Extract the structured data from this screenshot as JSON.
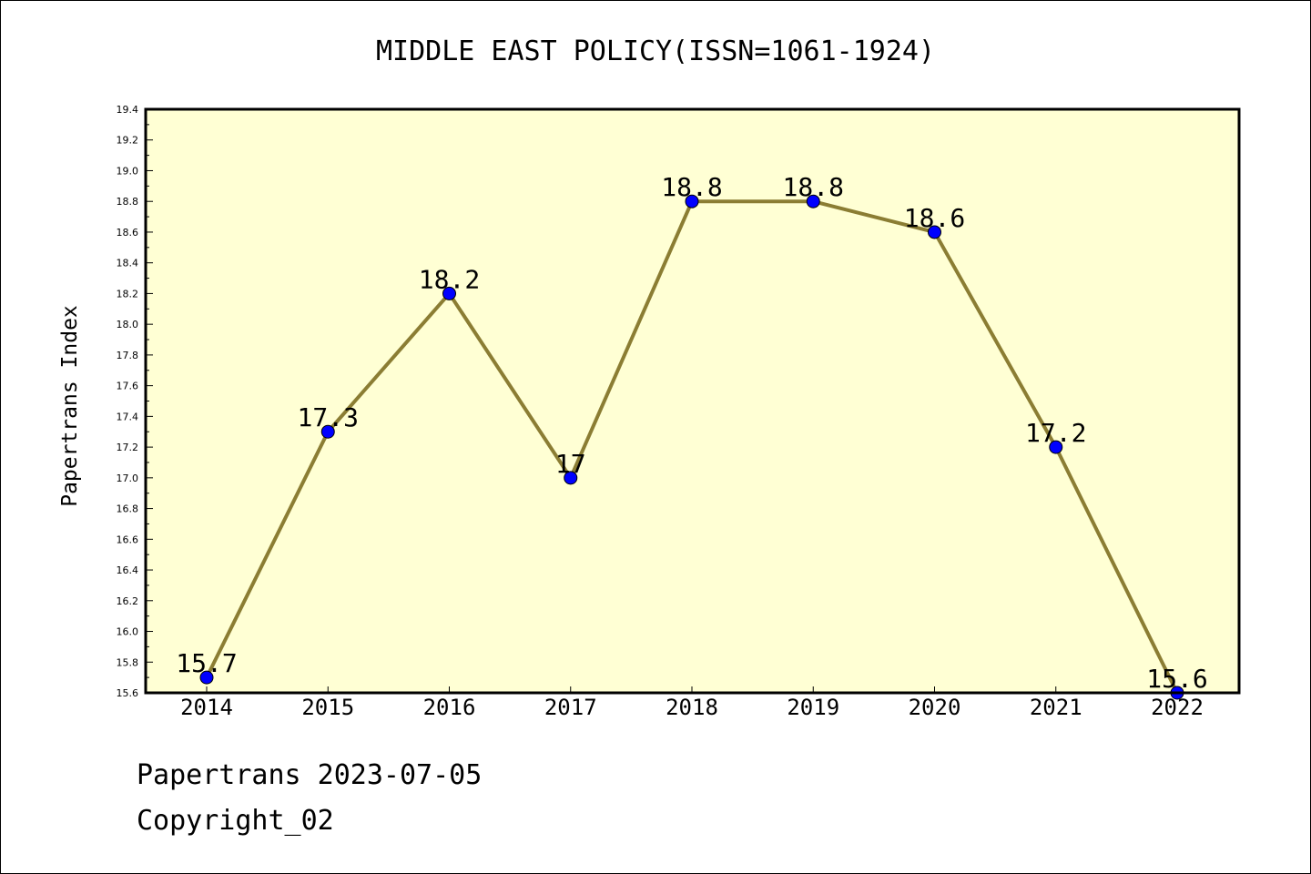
{
  "chart_data": {
    "type": "line",
    "title": "MIDDLE EAST POLICY(ISSN=1061-1924)",
    "xlabel": "",
    "ylabel": "Papertrans Index",
    "categories": [
      "2014",
      "2015",
      "2016",
      "2017",
      "2018",
      "2019",
      "2020",
      "2021",
      "2022"
    ],
    "values": [
      15.7,
      17.3,
      18.2,
      17.0,
      18.8,
      18.8,
      18.6,
      17.2,
      15.6
    ],
    "data_labels": [
      "15.7",
      "17.3",
      "18.2",
      "17",
      "18.8",
      "18.8",
      "18.6",
      "17.2",
      "15.6"
    ],
    "ylim": [
      15.6,
      19.4
    ],
    "yticks": [
      "15.6",
      "15.8",
      "16.0",
      "16.2",
      "16.4",
      "16.6",
      "16.8",
      "17.0",
      "17.2",
      "17.4",
      "17.6",
      "17.8",
      "18.0",
      "18.2",
      "18.4",
      "18.6",
      "18.8",
      "19.0",
      "19.2",
      "19.4"
    ],
    "grid": false,
    "colors": {
      "background": "#ffffd4",
      "line": "#8b7d33",
      "marker": "#0000ff"
    }
  },
  "footer": {
    "line1": "Papertrans 2023-07-05",
    "line2": "Copyright_02"
  }
}
